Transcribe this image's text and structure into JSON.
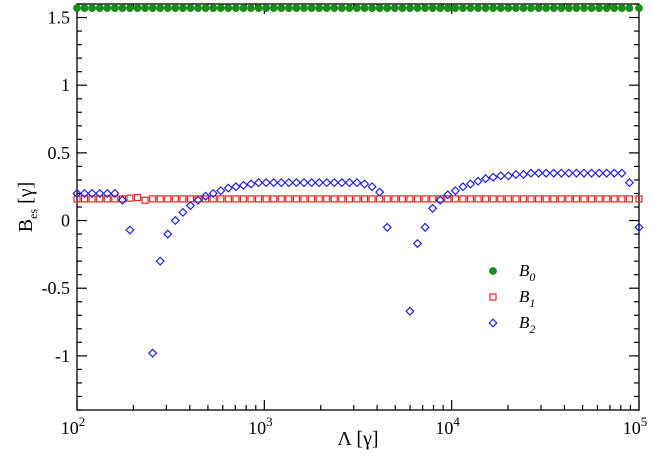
{
  "chart_data": {
    "type": "scatter",
    "title": "",
    "xlabel": {
      "main": "Λ [γ]"
    },
    "ylabel": {
      "main": "B",
      "sub": "es",
      "unit": " [γ]"
    },
    "xscale": "log",
    "xlim": [
      100,
      100000
    ],
    "ylim": [
      -1.4,
      1.6
    ],
    "x_ticks": [
      {
        "base": "10",
        "exp": "2",
        "value": 100
      },
      {
        "base": "10",
        "exp": "3",
        "value": 1000
      },
      {
        "base": "10",
        "exp": "4",
        "value": 10000
      },
      {
        "base": "10",
        "exp": "5",
        "value": 100000
      }
    ],
    "y_ticks": [
      {
        "label": "-1",
        "value": -1
      },
      {
        "label": "-0.5",
        "value": -0.5
      },
      {
        "label": "0",
        "value": 0
      },
      {
        "label": "0.5",
        "value": 0.5
      },
      {
        "label": "1",
        "value": 1
      },
      {
        "label": "1.5",
        "value": 1.5
      }
    ],
    "legend_position": "lower-right",
    "series": [
      {
        "name": "B",
        "sub": "0",
        "marker": "filled-circle",
        "color": "#1a8c1a",
        "points": [
          [
            100,
            1.57
          ],
          [
            109.7,
            1.57
          ],
          [
            120.4,
            1.57
          ],
          [
            132.2,
            1.57
          ],
          [
            145,
            1.57
          ],
          [
            159.2,
            1.57
          ],
          [
            174.7,
            1.57
          ],
          [
            191.7,
            1.57
          ],
          [
            210.4,
            1.57
          ],
          [
            230.9,
            1.57
          ],
          [
            253.4,
            1.57
          ],
          [
            278.1,
            1.57
          ],
          [
            305.2,
            1.57
          ],
          [
            335,
            1.57
          ],
          [
            367.6,
            1.57
          ],
          [
            403.4,
            1.57
          ],
          [
            442.8,
            1.57
          ],
          [
            485.9,
            1.57
          ],
          [
            533.3,
            1.57
          ],
          [
            585.3,
            1.57
          ],
          [
            642.3,
            1.57
          ],
          [
            705,
            1.57
          ],
          [
            773.7,
            1.57
          ],
          [
            849.1,
            1.57
          ],
          [
            931.9,
            1.57
          ],
          [
            1022.7,
            1.57
          ],
          [
            1122.4,
            1.57
          ],
          [
            1231.8,
            1.57
          ],
          [
            1351.9,
            1.57
          ],
          [
            1483.7,
            1.57
          ],
          [
            1628.3,
            1.57
          ],
          [
            1787.1,
            1.57
          ],
          [
            1961.3,
            1.57
          ],
          [
            2152.5,
            1.57
          ],
          [
            2362.3,
            1.57
          ],
          [
            2592.6,
            1.57
          ],
          [
            2845.3,
            1.57
          ],
          [
            3122.7,
            1.57
          ],
          [
            3427.1,
            1.57
          ],
          [
            3761.2,
            1.57
          ],
          [
            4127.8,
            1.57
          ],
          [
            4530.2,
            1.57
          ],
          [
            4971.9,
            1.57
          ],
          [
            5456.6,
            1.57
          ],
          [
            5988.5,
            1.57
          ],
          [
            6572.3,
            1.57
          ],
          [
            7213,
            1.57
          ],
          [
            7916.2,
            1.57
          ],
          [
            8687.9,
            1.57
          ],
          [
            9534.8,
            1.57
          ],
          [
            10464.3,
            1.57
          ],
          [
            11484.4,
            1.57
          ],
          [
            12603.9,
            1.57
          ],
          [
            13832.6,
            1.57
          ],
          [
            15181.1,
            1.57
          ],
          [
            16661.1,
            1.57
          ],
          [
            18285.3,
            1.57
          ],
          [
            20067.8,
            1.57
          ],
          [
            22024.1,
            1.57
          ],
          [
            24171.1,
            1.57
          ],
          [
            26527.5,
            1.57
          ],
          [
            29113.4,
            1.57
          ],
          [
            31951.5,
            1.57
          ],
          [
            35066.4,
            1.57
          ],
          [
            38484.7,
            1.57
          ],
          [
            42236.4,
            1.57
          ],
          [
            46353.8,
            1.57
          ],
          [
            50872.6,
            1.57
          ],
          [
            55831.8,
            1.57
          ],
          [
            61274.5,
            1.57
          ],
          [
            67247.9,
            1.57
          ],
          [
            73803.5,
            1.57
          ],
          [
            80998.2,
            1.57
          ],
          [
            88894.3,
            1.57
          ],
          [
            100000,
            1.57
          ]
        ]
      },
      {
        "name": "B",
        "sub": "1",
        "marker": "open-square",
        "color": "#e8231b",
        "points": [
          [
            100,
            0.16
          ],
          [
            109.7,
            0.16
          ],
          [
            120.4,
            0.16
          ],
          [
            132.2,
            0.16
          ],
          [
            145,
            0.16
          ],
          [
            159.2,
            0.16
          ],
          [
            174.7,
            0.16
          ],
          [
            191.7,
            0.165
          ],
          [
            210.4,
            0.17
          ],
          [
            230.9,
            0.15
          ],
          [
            253.4,
            0.16
          ],
          [
            278.1,
            0.16
          ],
          [
            305.2,
            0.16
          ],
          [
            335,
            0.16
          ],
          [
            367.6,
            0.16
          ],
          [
            403.4,
            0.16
          ],
          [
            442.8,
            0.16
          ],
          [
            485.9,
            0.16
          ],
          [
            533.3,
            0.16
          ],
          [
            585.3,
            0.16
          ],
          [
            642.3,
            0.16
          ],
          [
            705,
            0.16
          ],
          [
            773.7,
            0.16
          ],
          [
            849.1,
            0.16
          ],
          [
            931.9,
            0.16
          ],
          [
            1022.7,
            0.16
          ],
          [
            1122.4,
            0.16
          ],
          [
            1231.8,
            0.16
          ],
          [
            1351.9,
            0.16
          ],
          [
            1483.7,
            0.16
          ],
          [
            1628.3,
            0.16
          ],
          [
            1787.1,
            0.16
          ],
          [
            1961.3,
            0.16
          ],
          [
            2152.5,
            0.16
          ],
          [
            2362.3,
            0.16
          ],
          [
            2592.6,
            0.16
          ],
          [
            2845.3,
            0.16
          ],
          [
            3122.7,
            0.16
          ],
          [
            3427.1,
            0.16
          ],
          [
            3761.2,
            0.16
          ],
          [
            4127.8,
            0.16
          ],
          [
            4530.2,
            0.16
          ],
          [
            4971.9,
            0.16
          ],
          [
            5456.6,
            0.16
          ],
          [
            5988.5,
            0.16
          ],
          [
            6572.3,
            0.16
          ],
          [
            7213,
            0.16
          ],
          [
            7916.2,
            0.16
          ],
          [
            8687.9,
            0.16
          ],
          [
            9534.8,
            0.16
          ],
          [
            10464.3,
            0.16
          ],
          [
            11484.4,
            0.16
          ],
          [
            12603.9,
            0.16
          ],
          [
            13832.6,
            0.16
          ],
          [
            15181.1,
            0.16
          ],
          [
            16661.1,
            0.16
          ],
          [
            18285.3,
            0.16
          ],
          [
            20067.8,
            0.16
          ],
          [
            22024.1,
            0.16
          ],
          [
            24171.1,
            0.16
          ],
          [
            26527.5,
            0.16
          ],
          [
            29113.4,
            0.16
          ],
          [
            31951.5,
            0.16
          ],
          [
            35066.4,
            0.16
          ],
          [
            38484.7,
            0.16
          ],
          [
            42236.4,
            0.16
          ],
          [
            46353.8,
            0.16
          ],
          [
            50872.6,
            0.16
          ],
          [
            55831.8,
            0.16
          ],
          [
            61274.5,
            0.16
          ],
          [
            67247.9,
            0.16
          ],
          [
            73803.5,
            0.16
          ],
          [
            80998.2,
            0.16
          ],
          [
            88894.3,
            0.16
          ],
          [
            100000,
            0.16
          ]
        ]
      },
      {
        "name": "B",
        "sub": "2",
        "marker": "open-diamond",
        "color": "#2020e0",
        "points": [
          [
            100,
            0.2
          ],
          [
            109.7,
            0.2
          ],
          [
            120.4,
            0.2
          ],
          [
            132.2,
            0.2
          ],
          [
            145,
            0.2
          ],
          [
            159.2,
            0.2
          ],
          [
            174.7,
            0.15
          ],
          [
            191.7,
            -0.07
          ],
          [
            210.4,
            null
          ],
          [
            230.9,
            null
          ],
          [
            253.4,
            -0.98
          ],
          [
            278.1,
            -0.3
          ],
          [
            305.2,
            -0.1
          ],
          [
            335,
            0.0
          ],
          [
            367.6,
            0.06
          ],
          [
            403.4,
            0.11
          ],
          [
            442.8,
            0.15
          ],
          [
            485.9,
            0.18
          ],
          [
            533.3,
            0.2
          ],
          [
            585.3,
            0.22
          ],
          [
            642.3,
            0.24
          ],
          [
            705,
            0.25
          ],
          [
            773.7,
            0.26
          ],
          [
            849.1,
            0.27
          ],
          [
            931.9,
            0.28
          ],
          [
            1022.7,
            0.28
          ],
          [
            1122.4,
            0.28
          ],
          [
            1231.8,
            0.28
          ],
          [
            1351.9,
            0.28
          ],
          [
            1483.7,
            0.28
          ],
          [
            1628.3,
            0.28
          ],
          [
            1787.1,
            0.28
          ],
          [
            1961.3,
            0.28
          ],
          [
            2152.5,
            0.28
          ],
          [
            2362.3,
            0.28
          ],
          [
            2592.6,
            0.28
          ],
          [
            2845.3,
            0.28
          ],
          [
            3122.7,
            0.28
          ],
          [
            3427.1,
            0.27
          ],
          [
            3761.2,
            0.25
          ],
          [
            4127.8,
            0.21
          ],
          [
            4530.2,
            -0.05
          ],
          [
            4971.9,
            null
          ],
          [
            5456.6,
            null
          ],
          [
            5988.5,
            -0.67
          ],
          [
            6572.3,
            -0.17
          ],
          [
            7213,
            -0.05
          ],
          [
            7916.2,
            0.09
          ],
          [
            8687.9,
            0.15
          ],
          [
            9534.8,
            0.19
          ],
          [
            10464.3,
            0.22
          ],
          [
            11484.4,
            0.25
          ],
          [
            12603.9,
            0.27
          ],
          [
            13832.6,
            0.29
          ],
          [
            15181.1,
            0.31
          ],
          [
            16661.1,
            0.32
          ],
          [
            18285.3,
            0.33
          ],
          [
            20067.8,
            0.33
          ],
          [
            22024.1,
            0.34
          ],
          [
            24171.1,
            0.34
          ],
          [
            26527.5,
            0.35
          ],
          [
            29113.4,
            0.35
          ],
          [
            31951.5,
            0.35
          ],
          [
            35066.4,
            0.35
          ],
          [
            38484.7,
            0.35
          ],
          [
            42236.4,
            0.35
          ],
          [
            46353.8,
            0.35
          ],
          [
            50872.6,
            0.35
          ],
          [
            55831.8,
            0.35
          ],
          [
            61274.5,
            0.35
          ],
          [
            67247.9,
            0.35
          ],
          [
            73803.5,
            0.35
          ],
          [
            80998.2,
            0.35
          ],
          [
            88894.3,
            0.28
          ],
          [
            100000,
            -0.05
          ]
        ]
      }
    ]
  }
}
